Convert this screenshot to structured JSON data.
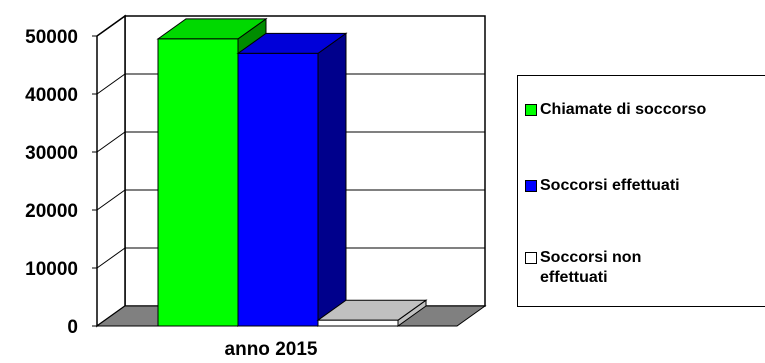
{
  "chart_data": {
    "type": "bar",
    "style": "3d",
    "categories": [
      "anno 2015"
    ],
    "series": [
      {
        "name": "Chiamate di soccorso",
        "values": [
          49500
        ],
        "color": "#00ff00"
      },
      {
        "name": "Soccorsi effettuati",
        "values": [
          47000
        ],
        "color": "#0000ff"
      },
      {
        "name": "Soccorsi non\neffettuati",
        "values": [
          1000
        ],
        "color": "#ffffff"
      }
    ],
    "yticks": [
      "0",
      "10000",
      "20000",
      "30000",
      "40000",
      "50000"
    ],
    "ylim": [
      0,
      50000
    ],
    "grid": true,
    "legend_position": "right",
    "floor_color": "#808080"
  }
}
